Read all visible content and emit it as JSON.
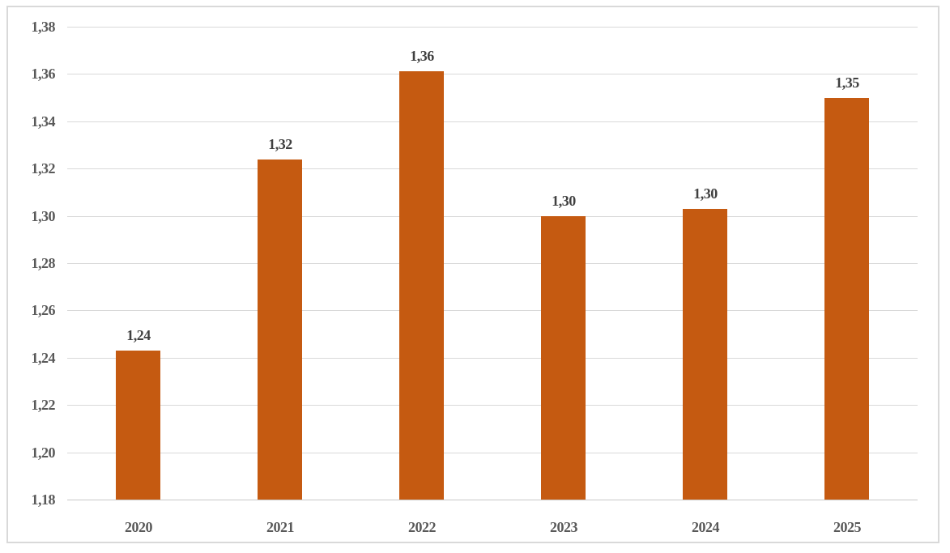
{
  "chart_data": {
    "type": "bar",
    "title": "",
    "xlabel": "",
    "ylabel": "",
    "categories": [
      "2020",
      "2021",
      "2022",
      "2023",
      "2024",
      "2025"
    ],
    "values": [
      1.243,
      1.324,
      1.361,
      1.3,
      1.303,
      1.35
    ],
    "data_labels": [
      "1,24",
      "1,32",
      "1,36",
      "1,30",
      "1,30",
      "1,35"
    ],
    "ylim": [
      1.18,
      1.38
    ],
    "y_tick_values": [
      1.38,
      1.36,
      1.34,
      1.32,
      1.3,
      1.28,
      1.26,
      1.24,
      1.22,
      1.2,
      1.18
    ],
    "y_tick_labels": [
      "1,38",
      "1,36",
      "1,34",
      "1,32",
      "1,30",
      "1,28",
      "1,26",
      "1,24",
      "1,22",
      "1,20",
      "1,18"
    ],
    "grid": true,
    "legend": "none",
    "decimal_separator": ",",
    "colors": {
      "bar": "#C55A11",
      "gridline": "#D9D9D9",
      "axis_line": "#C8C8C8",
      "axis_text": "#595959",
      "data_label_text": "#404040",
      "frame_border": "#D9D9D9",
      "background": "#FFFFFF"
    }
  }
}
